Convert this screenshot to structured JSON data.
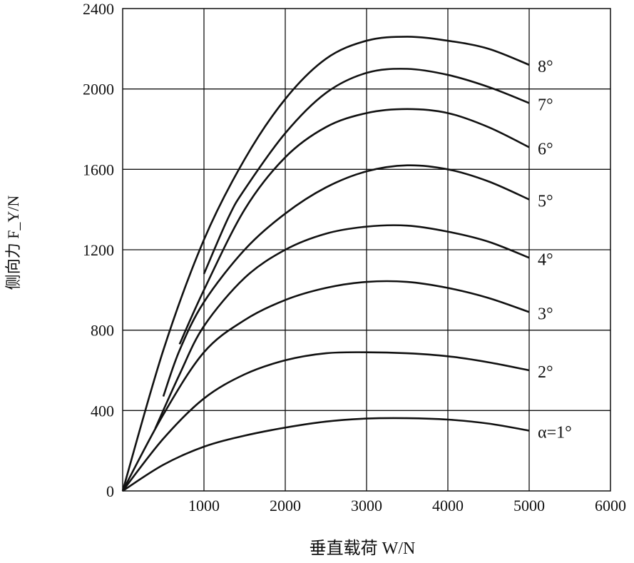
{
  "chart_data": {
    "type": "line",
    "title": "",
    "xlabel": "垂直载荷 W/N",
    "ylabel": "侧向力 F_Y/N",
    "xlim": [
      0,
      6000
    ],
    "ylim": [
      0,
      2400
    ],
    "xticks": [
      "1000",
      "2000",
      "3000",
      "4000",
      "5000",
      "6000"
    ],
    "yticks": [
      "0",
      "400",
      "800",
      "1200",
      "1600",
      "2000",
      "2400"
    ],
    "grid": true,
    "legend": "inline labels at right end of curves",
    "series": [
      {
        "name": "α=1°",
        "x": [
          0,
          500,
          1000,
          1500,
          2000,
          2500,
          3000,
          3500,
          4000,
          4500,
          5000
        ],
        "y": [
          0,
          130,
          220,
          275,
          315,
          345,
          360,
          362,
          355,
          335,
          300
        ]
      },
      {
        "name": "2°",
        "x": [
          0,
          500,
          1000,
          1500,
          2000,
          2500,
          3000,
          3500,
          4000,
          4500,
          5000
        ],
        "y": [
          0,
          260,
          460,
          580,
          650,
          685,
          690,
          685,
          670,
          640,
          600
        ]
      },
      {
        "name": "3°",
        "x": [
          0,
          500,
          1000,
          1500,
          2000,
          2500,
          3000,
          3500,
          4000,
          4500,
          5000
        ],
        "y": [
          0,
          380,
          690,
          850,
          950,
          1010,
          1040,
          1040,
          1010,
          960,
          890
        ]
      },
      {
        "name": "4°",
        "x": [
          400,
          700,
          1000,
          1500,
          2000,
          2500,
          3000,
          3500,
          4000,
          4500,
          5000
        ],
        "y": [
          310,
          580,
          820,
          1060,
          1200,
          1280,
          1315,
          1320,
          1290,
          1240,
          1160
        ]
      },
      {
        "name": "5°",
        "x": [
          500,
          700,
          1000,
          1500,
          2000,
          2500,
          3000,
          3500,
          4000,
          4500,
          5000
        ],
        "y": [
          470,
          700,
          940,
          1200,
          1380,
          1510,
          1590,
          1620,
          1600,
          1540,
          1450
        ]
      },
      {
        "name": "6°",
        "x": [
          700,
          1000,
          1500,
          2000,
          2500,
          3000,
          3500,
          4000,
          4500,
          5000
        ],
        "y": [
          730,
          1000,
          1400,
          1660,
          1810,
          1880,
          1900,
          1880,
          1810,
          1710
        ]
      },
      {
        "name": "7°",
        "x": [
          1000,
          1300,
          1500,
          2000,
          2500,
          3000,
          3500,
          4000,
          4500,
          5000
        ],
        "y": [
          1080,
          1360,
          1500,
          1780,
          1980,
          2080,
          2100,
          2070,
          2010,
          1930
        ]
      },
      {
        "name": "8°",
        "x": [
          0,
          500,
          1000,
          1500,
          2000,
          2500,
          3000,
          3500,
          4000,
          4500,
          5000
        ],
        "y": [
          0,
          700,
          1250,
          1650,
          1950,
          2150,
          2240,
          2260,
          2240,
          2200,
          2120
        ]
      }
    ]
  }
}
